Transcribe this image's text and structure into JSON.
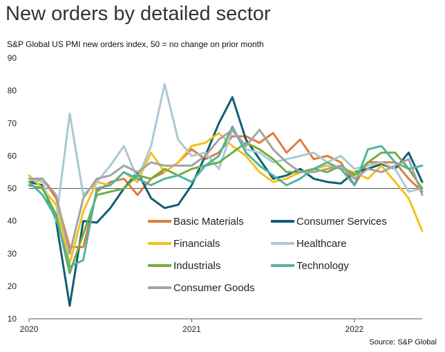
{
  "title": "New orders by detailed sector",
  "subtitle": "S&P Global US PMI new orders index, 50 = no change on prior month",
  "source": "Source: S&P Global",
  "chart_data": {
    "type": "line",
    "x": [
      "2020-01",
      "2020-02",
      "2020-03",
      "2020-04",
      "2020-05",
      "2020-06",
      "2020-07",
      "2020-08",
      "2020-09",
      "2020-10",
      "2020-11",
      "2020-12",
      "2021-01",
      "2021-02",
      "2021-03",
      "2021-04",
      "2021-05",
      "2021-06",
      "2021-07",
      "2021-08",
      "2021-09",
      "2021-10",
      "2021-11",
      "2021-12",
      "2022-01",
      "2022-02",
      "2022-03",
      "2022-04",
      "2022-05",
      "2022-06"
    ],
    "x_tick_labels": [
      "2020",
      "2021",
      "2022"
    ],
    "y_ticks": [
      10,
      20,
      30,
      40,
      50,
      60,
      70,
      80,
      90
    ],
    "ylim": [
      10,
      90
    ],
    "reference_line": 50,
    "grid": false,
    "series": [
      {
        "name": "Basic Materials",
        "color": "#e07b39",
        "values": [
          52,
          53,
          47,
          32,
          32,
          49,
          52,
          53,
          48,
          53,
          55,
          58,
          62,
          59,
          61,
          66,
          66,
          64,
          67,
          61,
          65,
          59,
          60,
          58,
          51,
          58,
          58,
          58,
          53,
          49
        ]
      },
      {
        "name": "Consumer Services",
        "color": "#0d5f73",
        "values": [
          52,
          51,
          40,
          14,
          40,
          39.5,
          44,
          50,
          55,
          47,
          44,
          45,
          51,
          60,
          70,
          78,
          65,
          59,
          53,
          54,
          56,
          53,
          52,
          51.5,
          55,
          56,
          57.5,
          56,
          61,
          52
        ]
      },
      {
        "name": "Financials",
        "color": "#f5c01a",
        "values": [
          54,
          50,
          45,
          27,
          43,
          52,
          51,
          55,
          52,
          61,
          55,
          58,
          63,
          64,
          67,
          63,
          60,
          55,
          52,
          53,
          55,
          56,
          57,
          56,
          55,
          53,
          57,
          52,
          47,
          37
        ]
      },
      {
        "name": "Healthcare",
        "color": "#a9c9d2",
        "values": [
          53,
          52,
          40,
          73,
          48,
          52,
          57,
          63,
          53,
          63,
          82,
          65,
          60,
          61,
          56,
          68,
          62,
          61,
          58,
          59,
          60,
          61,
          58,
          60,
          56,
          57,
          58,
          56,
          49,
          50
        ]
      },
      {
        "name": "Industrials",
        "color": "#6fad41",
        "values": [
          51,
          50,
          42,
          24,
          36,
          48,
          49,
          50,
          54,
          53,
          56,
          54,
          56,
          57,
          58,
          61,
          64,
          62,
          59,
          55,
          55,
          56,
          55,
          57,
          54,
          58,
          61,
          61,
          56,
          50
        ]
      },
      {
        "name": "Technology",
        "color": "#4db4a3",
        "values": [
          52,
          48,
          41,
          26,
          28,
          50,
          51,
          55,
          53,
          51,
          53,
          54,
          52,
          57,
          60,
          69,
          61,
          57,
          54,
          51,
          53,
          56,
          58,
          56,
          51,
          62,
          63,
          58,
          56,
          57
        ]
      },
      {
        "name": "Consumer Goods",
        "color": "#a3a3a3",
        "values": [
          53,
          53,
          48,
          30,
          47,
          53,
          54,
          57,
          55,
          58,
          57,
          57,
          57,
          60,
          65,
          68,
          63,
          68,
          62,
          58,
          55,
          55,
          56,
          57,
          53,
          56,
          55,
          57,
          59,
          48
        ]
      }
    ],
    "legend": {
      "placement": "inside-bottom",
      "columns": 2
    }
  }
}
